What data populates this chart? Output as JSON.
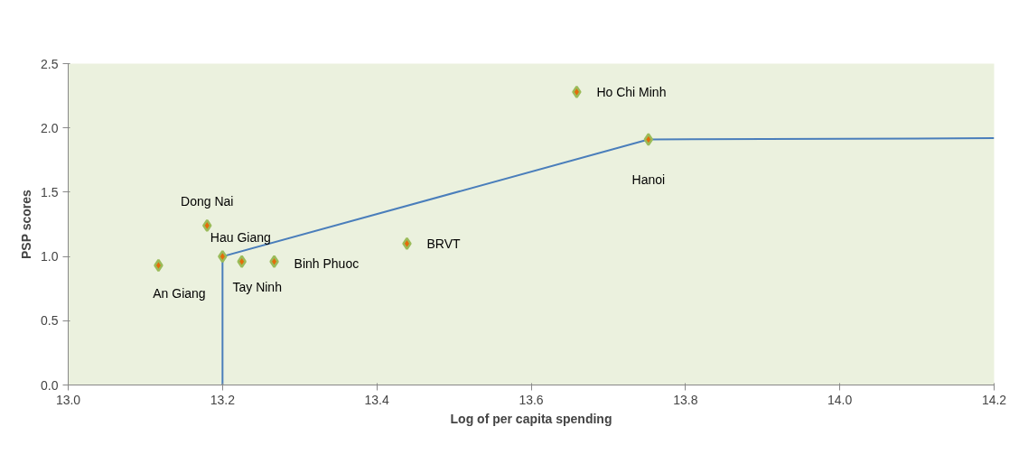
{
  "chart_data": {
    "type": "scatter",
    "xlabel": "Log of per capita spending",
    "ylabel": "PSP scores",
    "xlim": [
      13.0,
      14.2
    ],
    "xticks": [
      {
        "value": 13.0,
        "label": "13.0"
      },
      {
        "value": 13.2,
        "label": "13.2"
      },
      {
        "value": 13.4,
        "label": "13.4"
      },
      {
        "value": 13.6,
        "label": "13.6"
      },
      {
        "value": 13.8,
        "label": "13.8"
      },
      {
        "value": 14.0,
        "label": "14.0"
      },
      {
        "value": 14.2,
        "label": "14.2"
      }
    ],
    "ylim": [
      0.0,
      2.5
    ],
    "yticks": [
      {
        "value": 0.0,
        "label": "0.0"
      },
      {
        "value": 0.5,
        "label": "0.5"
      },
      {
        "value": 1.0,
        "label": "1.0"
      },
      {
        "value": 1.5,
        "label": "1.5"
      },
      {
        "value": 2.0,
        "label": "2.0"
      },
      {
        "value": 2.5,
        "label": "2.5"
      }
    ],
    "grid": false,
    "marker": "diamond",
    "series": [
      {
        "color": "#e46c0a",
        "x": [
          13.117,
          13.18,
          13.2,
          13.225,
          13.267,
          13.439,
          13.659,
          13.752
        ],
        "values": [
          0.93,
          1.24,
          1.0,
          0.96,
          0.96,
          1.1,
          2.28,
          1.91
        ]
      },
      {
        "type": "line",
        "color": "#4a7ebb",
        "marker": "none",
        "x": [
          13.2,
          13.2,
          13.752,
          14.2
        ],
        "values": [
          0.0,
          1.0,
          1.91,
          1.92
        ]
      }
    ],
    "annotations": [
      {
        "text": "An Giang",
        "x": 13.117,
        "y": 0.93
      },
      {
        "text": "Dong Nai",
        "x": 13.18,
        "y": 1.24
      },
      {
        "text": "Hau Giang",
        "x": 13.2,
        "y": 1.0
      },
      {
        "text": "Tay Ninh",
        "x": 13.225,
        "y": 0.96
      },
      {
        "text": "Binh Phuoc",
        "x": 13.267,
        "y": 0.96
      },
      {
        "text": "BRVT",
        "x": 13.439,
        "y": 1.1
      },
      {
        "text": "Ho Chi Minh",
        "x": 13.659,
        "y": 2.28
      },
      {
        "text": "Hanoi",
        "x": 13.752,
        "y": 1.91
      }
    ]
  }
}
